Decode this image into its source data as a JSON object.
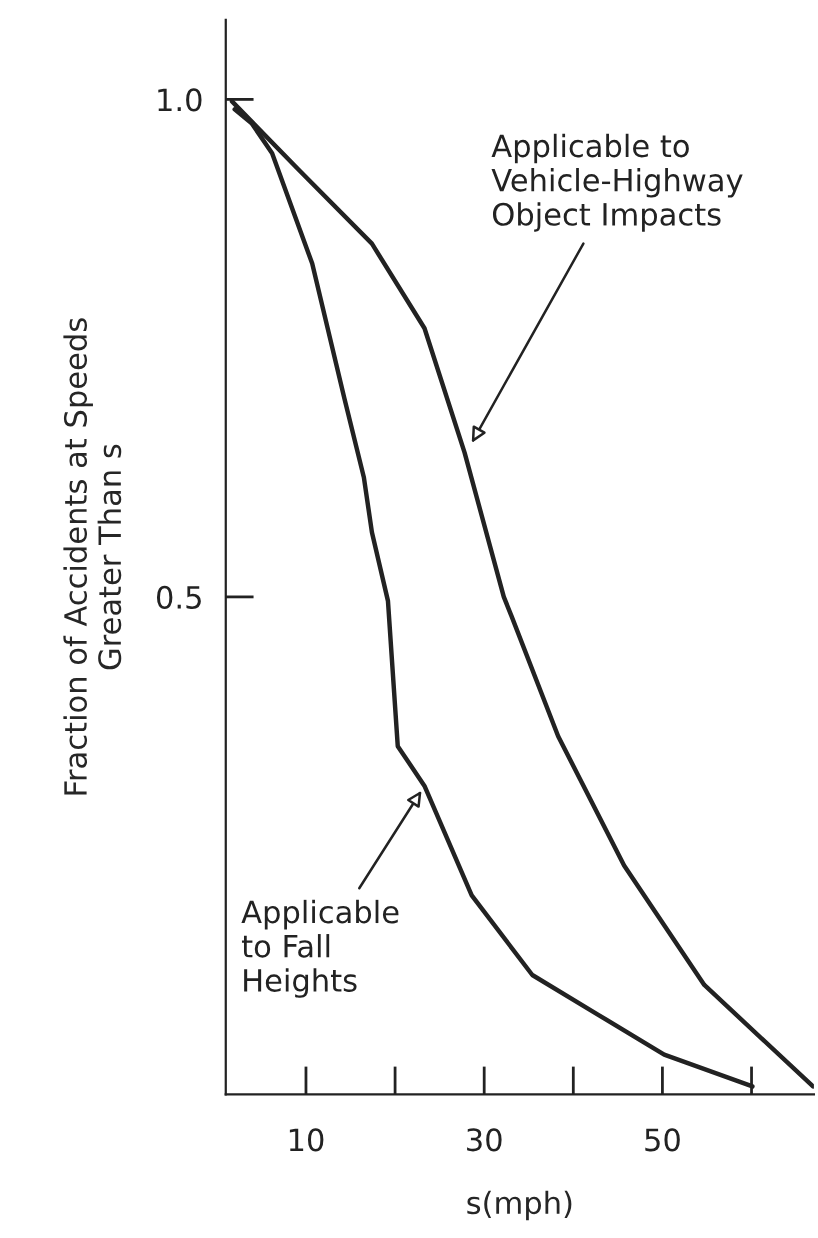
{
  "chart_data": {
    "type": "line",
    "xlabel": "s(mph)",
    "ylabel": "Fraction of Accidents at Speeds\nGreater Than s",
    "xlim": [
      1,
      67
    ],
    "ylim": [
      0,
      1.08
    ],
    "xticks": [
      10,
      {
        "value": 20,
        "label": null
      },
      30,
      {
        "value": 40,
        "label": null
      },
      50,
      {
        "value": 60,
        "label": null
      }
    ],
    "yticks": [
      {
        "value": 0.5,
        "label": "0.5"
      },
      {
        "value": 1.0,
        "label": "1.0"
      }
    ],
    "series": [
      {
        "color": "#222222",
        "x": [
          2,
          3.9,
          6.2,
          10.7,
          14.3,
          16.5,
          17.4,
          19.2,
          20.3,
          23.3,
          28.6,
          35.4,
          42.8,
          50.2,
          60.1
        ],
        "values": [
          0.99,
          0.976,
          0.946,
          0.835,
          0.7,
          0.62,
          0.565,
          0.496,
          0.35,
          0.31,
          0.2,
          0.12,
          0.08,
          0.04,
          0.008
        ]
      },
      {
        "color": "#222222",
        "x": [
          1.7,
          9.1,
          17.4,
          23.3,
          27.8,
          32.2,
          33.1,
          38.3,
          45.7,
          54.7,
          66.9
        ],
        "values": [
          0.998,
          0.93,
          0.855,
          0.77,
          0.645,
          0.5,
          0.48,
          0.36,
          0.23,
          0.11,
          0.008
        ]
      }
    ],
    "annotations": [
      {
        "text": "Applicable to\nVehicle-Highway\nObject Impacts",
        "x": 28.3,
        "y": 0.65
      },
      {
        "text": "Applicable\nto Fall\nHeights",
        "x": 23.3,
        "y": 0.31
      }
    ]
  }
}
